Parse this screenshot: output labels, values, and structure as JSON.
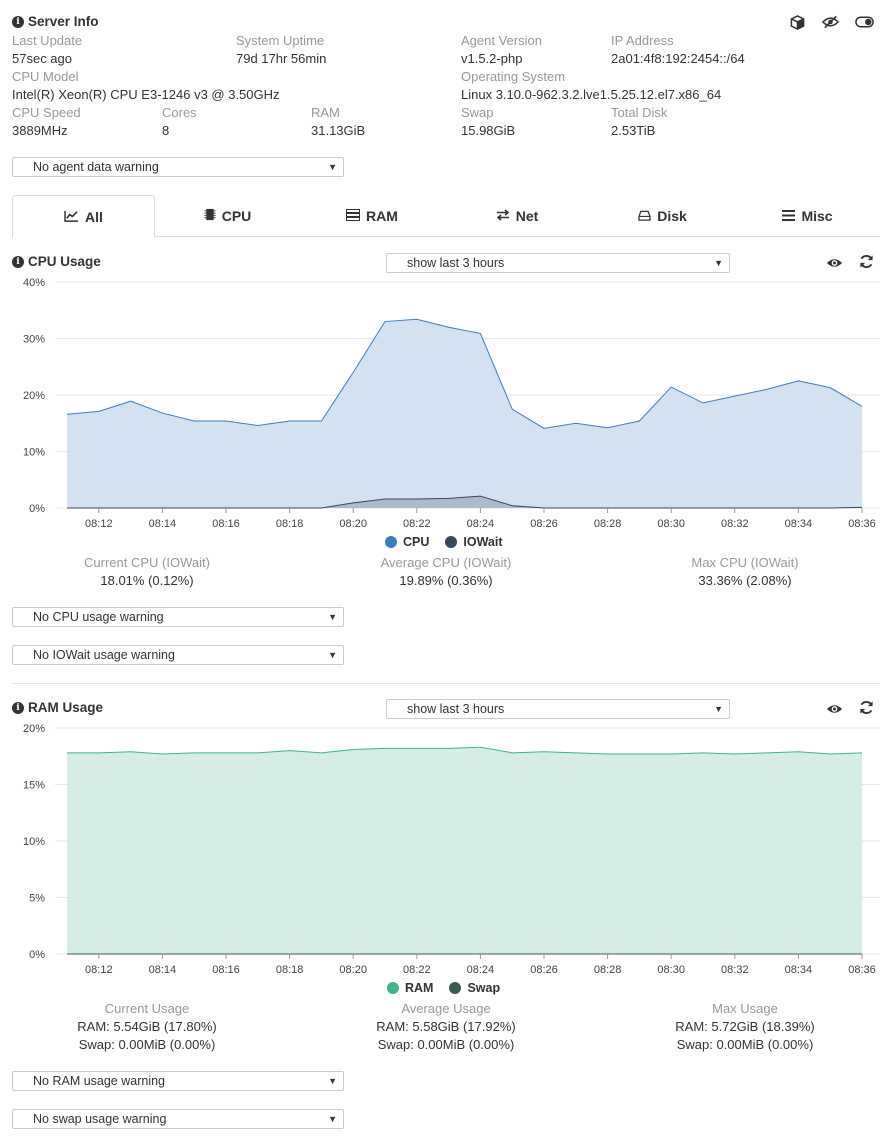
{
  "server_info": {
    "title": "Server Info",
    "fields": [
      {
        "label": "Last Update",
        "value": "57sec ago"
      },
      {
        "label": "System Uptime",
        "value": "79d 17hr 56min"
      },
      {
        "label": "Agent Version",
        "value": "v1.5.2-php"
      },
      {
        "label": "IP Address",
        "value": "2a01:4f8:192:2454::/64"
      },
      {
        "label": "CPU Model",
        "value": "Intel(R) Xeon(R) CPU E3-1246 v3 @ 3.50GHz"
      },
      {
        "label": "Operating System",
        "value": "Linux 3.10.0-962.3.2.lve1.5.25.12.el7.x86_64"
      },
      {
        "label": "CPU Speed",
        "value": "3889MHz"
      },
      {
        "label": "Cores",
        "value": "8"
      },
      {
        "label": "RAM",
        "value": "31.13GiB"
      },
      {
        "label": "Swap",
        "value": "15.98GiB"
      },
      {
        "label": "Total Disk",
        "value": "2.53TiB"
      }
    ],
    "agent_warning": "No agent data warning"
  },
  "header_icons": [
    "cube-icon",
    "eye-slash-icon",
    "toggle-icon"
  ],
  "tabs": [
    {
      "label": "All",
      "icon": "chart-line-icon",
      "active": true
    },
    {
      "label": "CPU",
      "icon": "chip-icon"
    },
    {
      "label": "RAM",
      "icon": "memory-icon"
    },
    {
      "label": "Net",
      "icon": "exchange-icon"
    },
    {
      "label": "Disk",
      "icon": "hdd-icon"
    },
    {
      "label": "Misc",
      "icon": "bars-icon"
    }
  ],
  "cpu": {
    "title": "CPU Usage",
    "range_select": "show last 3 hours",
    "stats": {
      "current_label": "Current CPU (IOWait)",
      "current_value": "18.01% (0.12%)",
      "average_label": "Average CPU (IOWait)",
      "average_value": "19.89% (0.36%)",
      "max_label": "Max CPU (IOWait)",
      "max_value": "33.36% (2.08%)"
    },
    "warnings": [
      "No CPU usage warning",
      "No IOWait usage warning"
    ],
    "colors": {
      "cpu": "#3b7dbf",
      "iowait": "#34495e",
      "fill": "#d3e1f0"
    }
  },
  "ram": {
    "title": "RAM Usage",
    "range_select": "show last 3 hours",
    "stats": {
      "current_label": "Current Usage",
      "current_ram": "RAM: 5.54GiB (17.80%)",
      "current_swap": "Swap: 0.00MiB (0.00%)",
      "average_label": "Average Usage",
      "average_ram": "RAM: 5.58GiB (17.92%)",
      "average_swap": "Swap: 0.00MiB (0.00%)",
      "max_label": "Max Usage",
      "max_ram": "RAM: 5.72GiB (18.39%)",
      "max_swap": "Swap: 0.00MiB (0.00%)"
    },
    "warnings": [
      "No RAM usage warning",
      "No swap usage warning"
    ],
    "colors": {
      "ram": "#3fb58a",
      "swap": "#3d5a50",
      "fill": "#d5ede3"
    }
  },
  "chart_data": [
    {
      "type": "area",
      "x": [
        "08:11",
        "08:12",
        "08:13",
        "08:14",
        "08:15",
        "08:16",
        "08:17",
        "08:18",
        "08:19",
        "08:20",
        "08:21",
        "08:22",
        "08:23",
        "08:24",
        "08:25",
        "08:26",
        "08:27",
        "08:28",
        "08:29",
        "08:30",
        "08:31",
        "08:32",
        "08:33",
        "08:34",
        "08:35",
        "08:36"
      ],
      "xticks": [
        "08:12",
        "08:14",
        "08:16",
        "08:18",
        "08:20",
        "08:22",
        "08:24",
        "08:26",
        "08:28",
        "08:30",
        "08:32",
        "08:34",
        "08:36"
      ],
      "yticks": [
        "0%",
        "10%",
        "20%",
        "30%",
        "40%"
      ],
      "ylim": [
        0,
        40
      ],
      "series": [
        {
          "name": "CPU",
          "values": [
            16.6,
            17.1,
            18.9,
            16.8,
            15.4,
            15.4,
            14.6,
            15.4,
            15.4,
            24.0,
            33.0,
            33.4,
            32.0,
            30.9,
            17.5,
            14.1,
            15.0,
            14.2,
            15.4,
            21.4,
            18.6,
            19.8,
            21.0,
            22.5,
            21.3,
            18.0
          ]
        },
        {
          "name": "IOWait",
          "values": [
            0,
            0,
            0,
            0,
            0,
            0,
            0,
            0,
            0,
            0.9,
            1.6,
            1.6,
            1.7,
            2.1,
            0.4,
            0,
            0,
            0,
            0,
            0,
            0,
            0,
            0,
            0,
            0,
            0.12
          ]
        }
      ]
    },
    {
      "type": "area",
      "x": [
        "08:11",
        "08:12",
        "08:13",
        "08:14",
        "08:15",
        "08:16",
        "08:17",
        "08:18",
        "08:19",
        "08:20",
        "08:21",
        "08:22",
        "08:23",
        "08:24",
        "08:25",
        "08:26",
        "08:27",
        "08:28",
        "08:29",
        "08:30",
        "08:31",
        "08:32",
        "08:33",
        "08:34",
        "08:35",
        "08:36"
      ],
      "xticks": [
        "08:12",
        "08:14",
        "08:16",
        "08:18",
        "08:20",
        "08:22",
        "08:24",
        "08:26",
        "08:28",
        "08:30",
        "08:32",
        "08:34",
        "08:36"
      ],
      "yticks": [
        "0%",
        "5%",
        "10%",
        "15%",
        "20%"
      ],
      "ylim": [
        0,
        20
      ],
      "series": [
        {
          "name": "RAM",
          "values": [
            17.8,
            17.8,
            17.9,
            17.7,
            17.8,
            17.8,
            17.8,
            18.0,
            17.8,
            18.1,
            18.2,
            18.2,
            18.2,
            18.3,
            17.8,
            17.9,
            17.8,
            17.7,
            17.7,
            17.7,
            17.8,
            17.7,
            17.8,
            17.9,
            17.7,
            17.8
          ]
        },
        {
          "name": "Swap",
          "values": [
            0,
            0,
            0,
            0,
            0,
            0,
            0,
            0,
            0,
            0,
            0,
            0,
            0,
            0,
            0,
            0,
            0,
            0,
            0,
            0,
            0,
            0,
            0,
            0,
            0,
            0
          ]
        }
      ]
    }
  ]
}
